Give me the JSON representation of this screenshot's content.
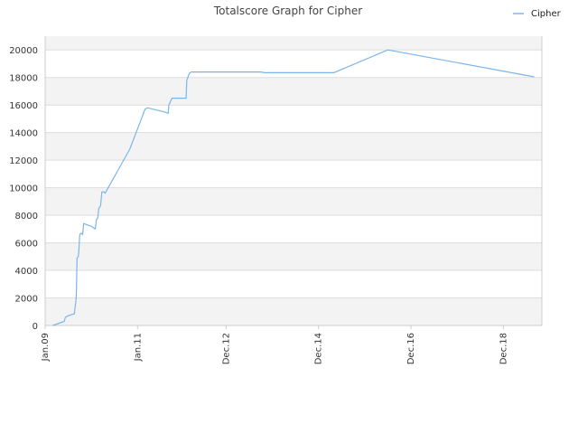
{
  "chart_data": {
    "type": "line",
    "title": "Totalscore Graph for Cipher",
    "xlabel": "",
    "ylabel": "",
    "legend": {
      "placement": "top-right",
      "entries": [
        "Cipher"
      ]
    },
    "grid": true,
    "ylim": [
      0,
      21000
    ],
    "xlim": [
      "2009-01-01",
      "2019-10-01"
    ],
    "y_ticks": [
      0,
      2000,
      4000,
      6000,
      8000,
      10000,
      12000,
      14000,
      16000,
      18000,
      20000
    ],
    "x_ticks": [
      {
        "label": "Jan.09",
        "date": "2009-01-01"
      },
      {
        "label": "Jan.11",
        "date": "2011-01-01"
      },
      {
        "label": "Dec.12",
        "date": "2012-12-01"
      },
      {
        "label": "Dec.14",
        "date": "2014-12-01"
      },
      {
        "label": "Dec.16",
        "date": "2016-12-01"
      },
      {
        "label": "Dec.18",
        "date": "2018-12-01"
      }
    ],
    "colors": {
      "series": "#7cb5ec",
      "band": "#f3f3f3",
      "grid": "#dddddd",
      "axis": "#cccccc"
    },
    "series": [
      {
        "name": "Cipher",
        "points": [
          [
            "2009-03-01",
            0
          ],
          [
            "2009-04-01",
            100
          ],
          [
            "2009-05-01",
            200
          ],
          [
            "2009-06-01",
            300
          ],
          [
            "2009-06-10",
            600
          ],
          [
            "2009-07-01",
            700
          ],
          [
            "2009-08-01",
            800
          ],
          [
            "2009-08-20",
            850
          ],
          [
            "2009-08-25",
            1300
          ],
          [
            "2009-09-01",
            1800
          ],
          [
            "2009-09-05",
            2400
          ],
          [
            "2009-09-10",
            4900
          ],
          [
            "2009-09-20",
            5000
          ],
          [
            "2009-09-25",
            5500
          ],
          [
            "2009-10-01",
            6600
          ],
          [
            "2009-10-10",
            6700
          ],
          [
            "2009-10-25",
            6600
          ],
          [
            "2009-11-01",
            7400
          ],
          [
            "2010-01-01",
            7200
          ],
          [
            "2010-02-01",
            7000
          ],
          [
            "2010-02-10",
            7700
          ],
          [
            "2010-02-20",
            7800
          ],
          [
            "2010-03-01",
            8500
          ],
          [
            "2010-03-15",
            8700
          ],
          [
            "2010-03-25",
            9700
          ],
          [
            "2010-04-10",
            9700
          ],
          [
            "2010-04-20",
            9600
          ],
          [
            "2010-11-01",
            12800
          ],
          [
            "2011-03-01",
            15700
          ],
          [
            "2011-03-20",
            15800
          ],
          [
            "2011-08-01",
            15500
          ],
          [
            "2011-09-01",
            15400
          ],
          [
            "2011-09-05",
            16000
          ],
          [
            "2011-10-01",
            16500
          ],
          [
            "2012-01-01",
            16500
          ],
          [
            "2012-01-20",
            16500
          ],
          [
            "2012-01-25",
            17800
          ],
          [
            "2012-02-15",
            18300
          ],
          [
            "2012-03-01",
            18400
          ],
          [
            "2013-09-01",
            18400
          ],
          [
            "2013-10-01",
            18350
          ],
          [
            "2015-04-01",
            18350
          ],
          [
            "2016-06-01",
            20000
          ],
          [
            "2019-08-01",
            18050
          ]
        ]
      }
    ]
  }
}
